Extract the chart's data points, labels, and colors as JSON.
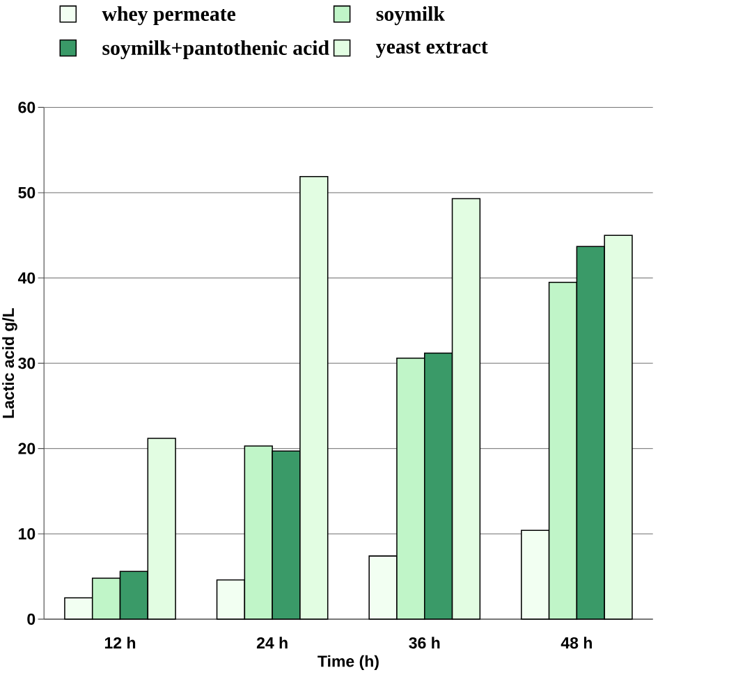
{
  "chart_data": {
    "type": "bar",
    "xlabel": "Time (h)",
    "ylabel": "Lactic acid g/L",
    "categories": [
      "12 h",
      "24 h",
      "36 h",
      "48 h"
    ],
    "series": [
      {
        "name": "whey permeate",
        "color": "#f2fff2",
        "values": [
          2.5,
          4.6,
          7.4,
          10.4
        ]
      },
      {
        "name": "soymilk",
        "color": "#c0f5c8",
        "values": [
          4.8,
          20.3,
          30.6,
          39.5
        ]
      },
      {
        "name": "soymilk+pantothenic acid",
        "color": "#3a9a68",
        "values": [
          5.6,
          19.7,
          31.2,
          43.7
        ]
      },
      {
        "name": "yeast extract",
        "color": "#e2fde2",
        "values": [
          21.2,
          51.9,
          49.3,
          45.0
        ]
      }
    ],
    "ylim": [
      0,
      60
    ],
    "yticks": [
      0,
      10,
      20,
      30,
      40,
      50,
      60
    ],
    "grid": "y",
    "legend": "top"
  }
}
